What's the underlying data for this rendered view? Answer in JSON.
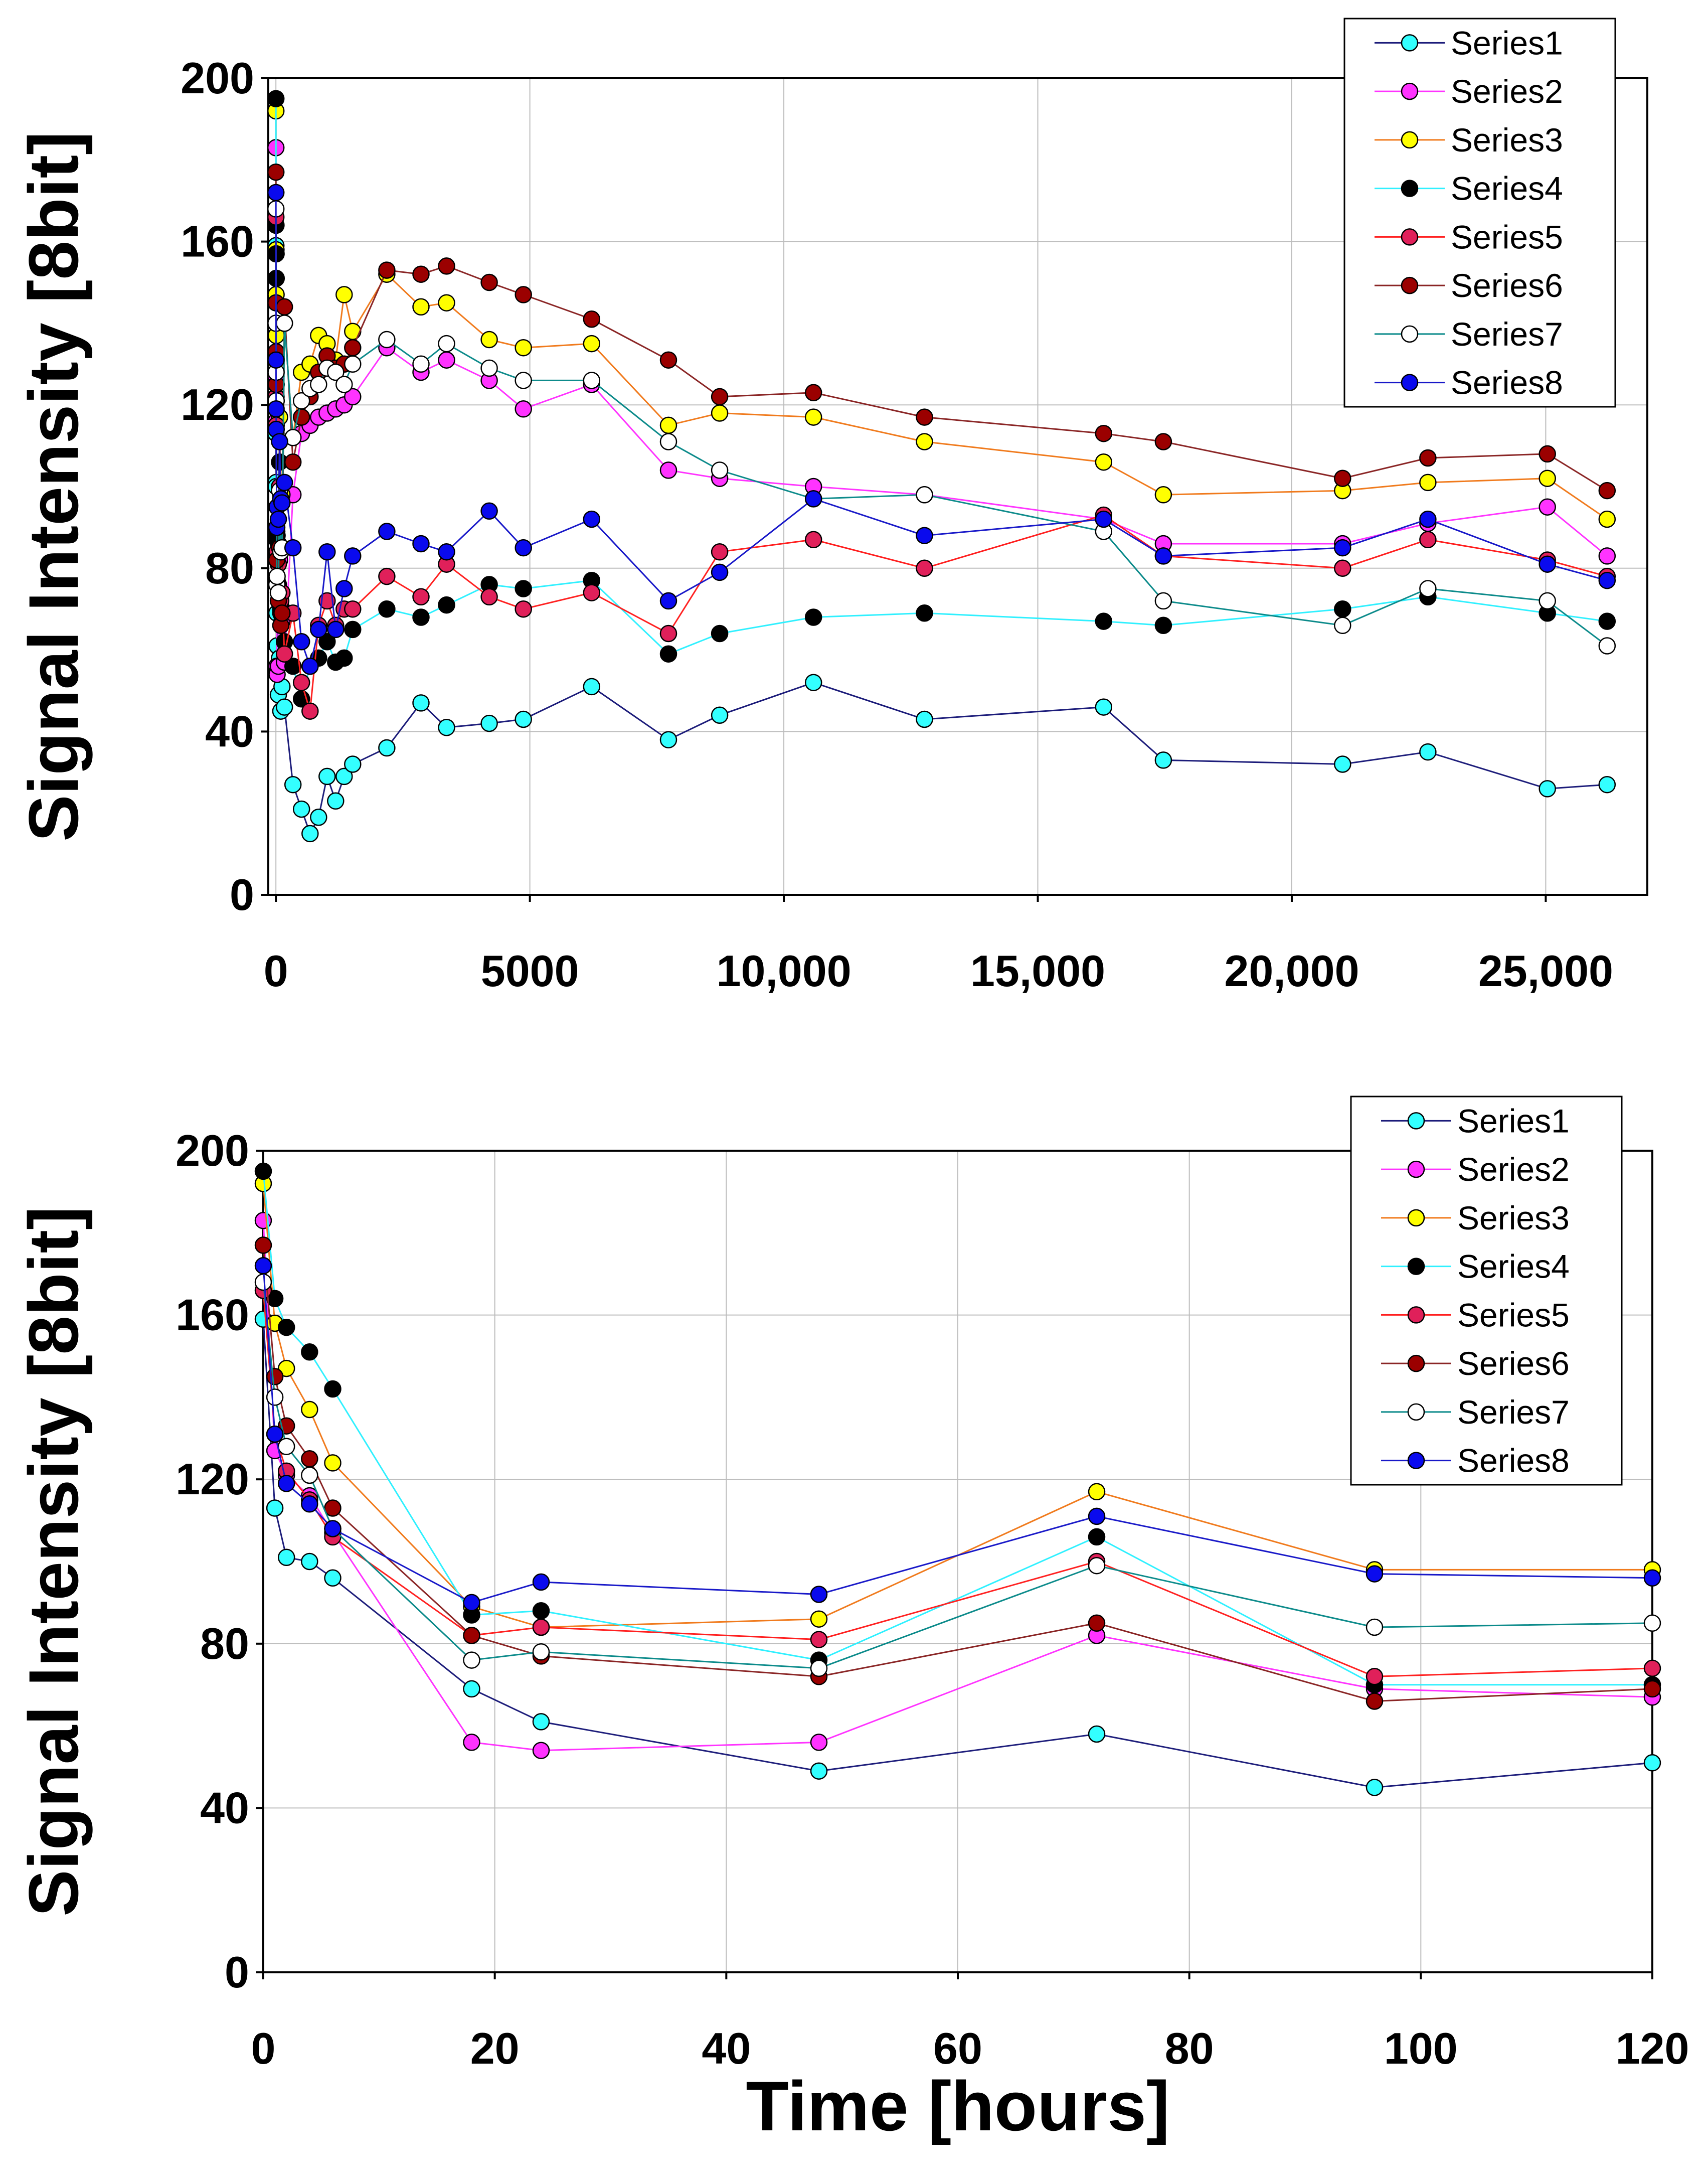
{
  "colors": {
    "series_fill": [
      "#33ffff",
      "#ff33ff",
      "#ffff00",
      "#000000",
      "#e0205a",
      "#9b0000",
      "#ffffff",
      "#0a0aee"
    ],
    "series_line": [
      "#1c1c7a",
      "#ff33ff",
      "#f07a1c",
      "#2ff0ff",
      "#ff2020",
      "#8a2525",
      "#0b8a8a",
      "#1818c8"
    ]
  },
  "chart_data": [
    {
      "type": "line",
      "marker": "circle",
      "xlabel": "",
      "ylabel": "Signal Intensity [8bit]",
      "xlim": [
        -150,
        27000
      ],
      "ylim": [
        0,
        200
      ],
      "xticks": [
        0,
        5000,
        10000,
        15000,
        20000,
        25000
      ],
      "xtick_labels": [
        "0",
        "5000",
        "10,000",
        "15,000",
        "20,000",
        "25,000"
      ],
      "yticks": [
        0,
        40,
        80,
        120,
        160,
        200
      ],
      "ytick_labels": [
        "0",
        "40",
        "80",
        "120",
        "160",
        "200"
      ],
      "grid": true,
      "legend": "top-right",
      "x": [
        0,
        2,
        4,
        6,
        18,
        24,
        48,
        72,
        96,
        120,
        168,
        336,
        504,
        672,
        840,
        1008,
        1176,
        1344,
        1512,
        2184,
        2856,
        3360,
        4200,
        4872,
        6216,
        7728,
        8736,
        10584,
        12768,
        16296,
        17472,
        21000,
        22680,
        25032,
        26208
      ],
      "series": [
        {
          "name": "Series1",
          "values": [
            159,
            113,
            101,
            100,
            69,
            61,
            49,
            58,
            45,
            51,
            46,
            27,
            21,
            15,
            19,
            29,
            23,
            29,
            32,
            36,
            47,
            41,
            42,
            43,
            51,
            38,
            44,
            52,
            43,
            46,
            33,
            32,
            35,
            26,
            27
          ]
        },
        {
          "name": "Series2",
          "values": [
            183,
            127,
            121,
            116,
            56,
            54,
            56,
            82,
            69,
            67,
            57,
            98,
            113,
            115,
            117,
            118,
            119,
            120,
            122,
            134,
            128,
            131,
            126,
            119,
            125,
            104,
            102,
            100,
            98,
            92,
            86,
            86,
            91,
            95,
            83
          ]
        },
        {
          "name": "Series3",
          "values": [
            192,
            158,
            147,
            137,
            89,
            84,
            86,
            117,
            98,
            98,
            140,
            112,
            128,
            130,
            137,
            135,
            131,
            147,
            138,
            152,
            144,
            145,
            136,
            134,
            135,
            115,
            118,
            117,
            111,
            106,
            98,
            99,
            101,
            102,
            92
          ]
        },
        {
          "name": "Series4",
          "values": [
            195,
            164,
            157,
            151,
            87,
            88,
            76,
            106,
            70,
            70,
            62,
            56,
            48,
            56,
            58,
            62,
            57,
            58,
            65,
            70,
            68,
            71,
            76,
            75,
            77,
            59,
            64,
            68,
            69,
            67,
            66,
            70,
            73,
            69,
            67
          ]
        },
        {
          "name": "Series5",
          "values": [
            166,
            131,
            122,
            115,
            82,
            84,
            81,
            100,
            72,
            74,
            59,
            69,
            52,
            45,
            66,
            72,
            66,
            70,
            70,
            78,
            73,
            81,
            73,
            70,
            74,
            64,
            84,
            87,
            80,
            93,
            83,
            80,
            87,
            82,
            78
          ]
        },
        {
          "name": "Series6",
          "values": [
            177,
            145,
            133,
            125,
            82,
            77,
            72,
            85,
            66,
            69,
            144,
            106,
            117,
            122,
            128,
            132,
            129,
            130,
            134,
            153,
            152,
            154,
            150,
            147,
            141,
            131,
            122,
            123,
            117,
            113,
            111,
            102,
            107,
            108,
            99
          ]
        },
        {
          "name": "Series7",
          "values": [
            168,
            140,
            128,
            121,
            76,
            78,
            74,
            99,
            84,
            85,
            140,
            112,
            121,
            124,
            125,
            129,
            128,
            125,
            130,
            136,
            130,
            135,
            129,
            126,
            126,
            111,
            104,
            97,
            98,
            89,
            72,
            66,
            75,
            72,
            61
          ]
        },
        {
          "name": "Series8",
          "values": [
            172,
            131,
            119,
            114,
            90,
            95,
            92,
            111,
            97,
            96,
            101,
            85,
            62,
            56,
            65,
            84,
            65,
            75,
            83,
            89,
            86,
            84,
            94,
            85,
            92,
            72,
            79,
            97,
            88,
            92,
            83,
            85,
            92,
            81,
            77
          ]
        }
      ]
    },
    {
      "type": "line",
      "marker": "circle",
      "xlabel": "Time [hours]",
      "ylabel": "Signal Intensity [8bit]",
      "xlim": [
        0,
        120
      ],
      "ylim": [
        0,
        200
      ],
      "xticks": [
        0,
        20,
        40,
        60,
        80,
        100,
        120
      ],
      "xtick_labels": [
        "0",
        "20",
        "40",
        "60",
        "80",
        "100",
        "120"
      ],
      "yticks": [
        0,
        40,
        80,
        120,
        160,
        200
      ],
      "ytick_labels": [
        "0",
        "40",
        "80",
        "120",
        "160",
        "200"
      ],
      "grid": true,
      "legend": "top-right",
      "x": [
        0,
        1,
        2,
        4,
        6,
        18,
        24,
        48,
        72,
        96,
        120
      ],
      "series": [
        {
          "name": "Series1",
          "values": [
            159,
            113,
            101,
            100,
            96,
            69,
            61,
            49,
            58,
            45,
            51
          ]
        },
        {
          "name": "Series2",
          "values": [
            183,
            127,
            121,
            116,
            107,
            56,
            54,
            56,
            82,
            69,
            67
          ]
        },
        {
          "name": "Series3",
          "values": [
            192,
            158,
            147,
            137,
            124,
            89,
            84,
            86,
            117,
            98,
            98
          ]
        },
        {
          "name": "Series4",
          "values": [
            195,
            164,
            157,
            151,
            142,
            87,
            88,
            76,
            106,
            70,
            70
          ]
        },
        {
          "name": "Series5",
          "values": [
            166,
            131,
            122,
            115,
            106,
            82,
            84,
            81,
            100,
            72,
            74
          ]
        },
        {
          "name": "Series6",
          "values": [
            177,
            145,
            133,
            125,
            113,
            82,
            77,
            72,
            85,
            66,
            69
          ]
        },
        {
          "name": "Series7",
          "values": [
            168,
            140,
            128,
            121,
            108,
            76,
            78,
            74,
            99,
            84,
            85
          ]
        },
        {
          "name": "Series8",
          "values": [
            172,
            131,
            119,
            114,
            108,
            90,
            95,
            92,
            111,
            97,
            96
          ]
        }
      ]
    }
  ]
}
